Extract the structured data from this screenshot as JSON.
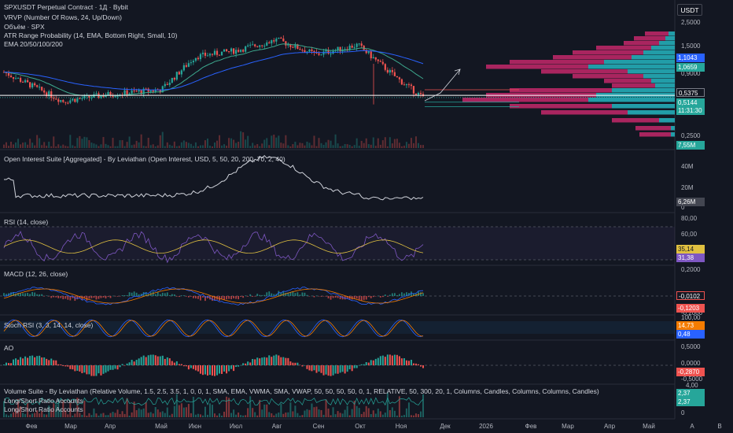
{
  "header": {
    "title": "SPXUSDT Perpetual Contract · 1Д · Bybit",
    "indicators": [
      "VRVP (Number Of Rows, 24, Up/Down)",
      "Объём · SPX",
      "ATR Range Probability (14, EMA, Bottom Right, Small, 10)",
      "EMA 20/50/100/200"
    ],
    "currency": "USDT"
  },
  "panes": {
    "oi": {
      "label": "Open Interest Suite [Aggregated] - By Leviathan (Open Interest, USD, 5, 50, 20, 200, 70, 2, 40)",
      "ticks": [
        "40M",
        "20M",
        "0"
      ],
      "badge": "6,26M"
    },
    "rsi": {
      "label": "RSI (14, close)",
      "ticks": [
        "80,00",
        "60,00",
        "40,00"
      ],
      "badges": [
        "35,14",
        "31,38"
      ]
    },
    "macd": {
      "label": "MACD (12, 26, close)",
      "ticks": [
        "0,2000",
        "-0,2000"
      ],
      "badges": [
        "-0,0102",
        "-0,1203"
      ]
    },
    "stoch": {
      "label": "Stoch RSI (3, 3, 14, 14, close)",
      "ticks": [
        "100,00"
      ],
      "badges": [
        "14,73",
        "0,48"
      ]
    },
    "ao": {
      "label": "AO",
      "ticks": [
        "0,5000",
        "0,0000",
        "-0,5000"
      ],
      "badge": "-0,2870"
    },
    "vol": {
      "labels": [
        "Volume Suite - By Leviathan (Relative Volume, 1.5, 2.5, 3.5, 1, 0, 0, 1, SMA, EMA, VWMA, SMA, VWAP, 50, 50, 50, 50, 0, 1, RELATIVE, 50, 300, 20, 1, Columns, Candles, Columns, Columns, Candles)",
        "Long/Short Ratio Accounts",
        "Long/Short Ratio Accounts"
      ],
      "ticks": [
        "4,00",
        "2",
        "0"
      ],
      "badges": [
        "2,37",
        "2,37"
      ]
    }
  },
  "price_axis": {
    "ticks": [
      "2,5000",
      "1,5000",
      "0,9000",
      "0,2500"
    ],
    "badges": [
      {
        "text": "1,1043",
        "color": "#2962ff"
      },
      {
        "text": "1,0659",
        "color": "#26a69a"
      },
      {
        "text": "0,5375",
        "color": "#131722"
      },
      {
        "text": "0,5144",
        "color": "#26a69a"
      },
      {
        "text": "11:31:30",
        "color": "#26a69a"
      },
      {
        "text": "7,55M",
        "color": "#26a69a"
      }
    ]
  },
  "time_axis": [
    "Фев",
    "Мар",
    "Апр",
    "Май",
    "Июн",
    "Июл",
    "Авг",
    "Сен",
    "Окт",
    "Ноя",
    "Дек",
    "2026",
    "Фев",
    "Мар",
    "Апр",
    "Май"
  ],
  "axis_buttons": [
    "A",
    "B"
  ],
  "colors": {
    "up": "#26a69a",
    "down": "#ef5350",
    "vp_up": "#26b5bf",
    "vp_down": "#c4286a",
    "ema_fast": "#3da88d",
    "ema_slow": "#2962ff",
    "rsi": "#7e57c2",
    "rsi_ma": "#e0c040"
  },
  "chart_data": {
    "type": "candlestick",
    "symbol": "SPXUSDT",
    "scale": "log",
    "x_range": [
      "Фев",
      "Май"
    ],
    "y_range": [
      0.2,
      3.0
    ],
    "price_path": [
      [
        "Фев",
        0.85
      ],
      [
        "Мар",
        0.48
      ],
      [
        "Апр",
        0.55
      ],
      [
        "Май",
        0.6
      ],
      [
        "Июн",
        1.15
      ],
      [
        "Июл",
        1.3
      ],
      [
        "Авг",
        1.6
      ],
      [
        "Сен",
        1.2
      ],
      [
        "Окт",
        1.45
      ],
      [
        "Ноя",
        0.75
      ],
      [
        "Ноя",
        0.5144
      ]
    ],
    "last_price": 0.5144,
    "marked_price": 0.5375,
    "ema_values": [
      1.1043,
      1.0659
    ],
    "volume_last": "7,55M",
    "open_interest_last": "6,26M",
    "rsi": [
      35.14,
      31.38
    ],
    "macd": [
      -0.0102,
      -0.1203
    ],
    "stoch_rsi": [
      14.73,
      0.48
    ],
    "ao": -0.287,
    "ls_ratio": 2.37
  }
}
